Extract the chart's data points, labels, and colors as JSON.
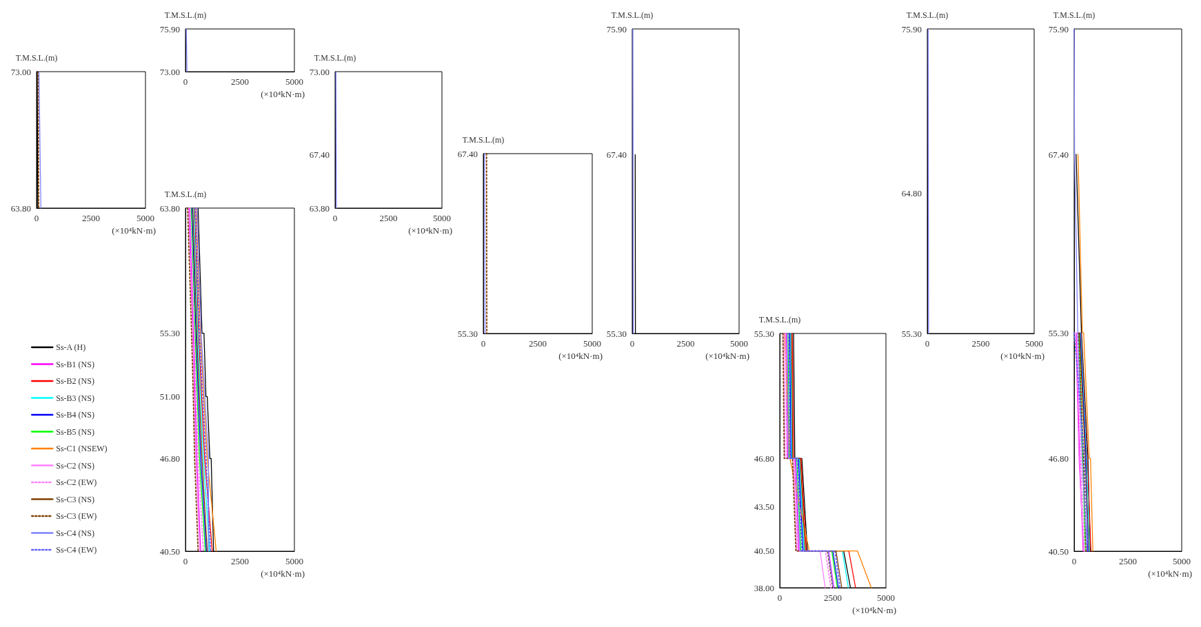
{
  "chart_data": [
    {
      "type": "line",
      "ylabel": "T.M.S.L.(m)",
      "xlabel": "(×10⁴kN·m)",
      "xlim": [
        0,
        5000
      ],
      "xticks": [
        0,
        2500,
        5000
      ],
      "ylim": [
        63.8,
        73
      ],
      "yticks": [
        {
          "value": 63.8,
          "label": "63.80"
        },
        {
          "value": 73,
          "label": "73.00"
        }
      ],
      "grid": false,
      "marker": "none",
      "series": [
        {
          "color": "#000000",
          "x": [
            30,
            60
          ],
          "values": [
            73,
            63.8
          ]
        },
        {
          "color": "#804000",
          "line_style": "dotted",
          "x": [
            70,
            100
          ],
          "values": [
            73,
            63.8
          ]
        },
        {
          "color": "#8080ff",
          "x": [
            110,
            200
          ],
          "values": [
            73,
            63.8
          ]
        }
      ]
    },
    {
      "type": "line",
      "ylabel": "T.M.S.L.(m)",
      "xlabel": "(×10⁴kN·m)",
      "xlim": [
        0,
        5000
      ],
      "xticks": [
        0,
        2500,
        5000
      ],
      "ylim": [
        73,
        75.9
      ],
      "yticks": [
        {
          "value": 73,
          "label": "73.00"
        },
        {
          "value": 75.9,
          "label": "75.90"
        }
      ],
      "grid": false,
      "marker": "none",
      "series": [
        {
          "color": "#8080ff",
          "x": [
            40,
            70
          ],
          "values": [
            75.9,
            73
          ]
        }
      ]
    },
    {
      "type": "line",
      "ylabel": "T.M.S.L.(m)",
      "xlabel": "(×10⁴kN·m)",
      "xlim": [
        0,
        5000
      ],
      "xticks": [
        0,
        2500,
        5000
      ],
      "ylim": [
        63.8,
        73
      ],
      "yticks": [
        {
          "value": 63.8,
          "label": "63.80"
        },
        {
          "value": 67.4,
          "label": "67.40"
        },
        {
          "value": 73,
          "label": "73.00"
        }
      ],
      "grid": false,
      "marker": "none",
      "series": [
        {
          "color": "#8080ff",
          "x": [
            40,
            60
          ],
          "values": [
            73,
            63.8
          ]
        }
      ]
    },
    {
      "type": "line",
      "ylabel": "T.M.S.L.(m)",
      "xlabel": "(×10⁴kN·m)",
      "xlim": [
        0,
        5000
      ],
      "xticks": [
        0,
        2500,
        5000
      ],
      "ylim": [
        40.5,
        63.8
      ],
      "yticks": [
        {
          "value": 40.5,
          "label": "40.50"
        },
        {
          "value": 46.8,
          "label": "46.80"
        },
        {
          "value": 51,
          "label": "51.00"
        },
        {
          "value": 55.3,
          "label": "55.30"
        },
        {
          "value": 63.8,
          "label": "63.80"
        }
      ],
      "grid": false,
      "marker": "none",
      "legend": "left",
      "series": [
        {
          "name": "Ss-A (H)",
          "color": "#000000",
          "x": [
            580,
            760,
            850,
            940,
            1000,
            1120,
            1180,
            1290
          ],
          "values": [
            63.8,
            55.3,
            55.3,
            51,
            51,
            46.8,
            46.8,
            40.5
          ]
        },
        {
          "name": "Ss-B1 (NS)",
          "color": "#ff00ff",
          "x": [
            180,
            360,
            440,
            520,
            700
          ],
          "values": [
            63.8,
            55.3,
            51,
            46.8,
            40.5
          ]
        },
        {
          "name": "Ss-B2 (NS)",
          "color": "#ff0000",
          "x": [
            420,
            600,
            740,
            880,
            1230
          ],
          "values": [
            63.8,
            55.3,
            51,
            46.8,
            40.5
          ]
        },
        {
          "name": "Ss-B3 (NS)",
          "color": "#00ffff",
          "x": [
            380,
            560,
            690,
            820,
            1110
          ],
          "values": [
            63.8,
            55.3,
            51,
            46.8,
            40.5
          ]
        },
        {
          "name": "Ss-B4 (NS)",
          "color": "#0000ff",
          "x": [
            300,
            480,
            590,
            700,
            960
          ],
          "values": [
            63.8,
            55.3,
            51,
            46.8,
            40.5
          ]
        },
        {
          "name": "Ss-B5 (NS)",
          "color": "#00ff00",
          "x": [
            260,
            440,
            540,
            640,
            910
          ],
          "values": [
            63.8,
            55.3,
            51,
            46.8,
            40.5
          ]
        },
        {
          "name": "Ss-C1 (NSEW)",
          "color": "#ff8000",
          "x": [
            500,
            680,
            840,
            1000,
            1410
          ],
          "values": [
            63.8,
            55.3,
            51,
            46.8,
            40.5
          ]
        },
        {
          "name": "Ss-C2 (NS)",
          "color": "#ff80ff",
          "x": [
            140,
            320,
            400,
            470,
            650
          ],
          "values": [
            63.8,
            55.3,
            51,
            46.8,
            40.5
          ]
        },
        {
          "name": "Ss-C2 (EW)",
          "color": "#ff80ff",
          "line_style": "dotted",
          "x": [
            220,
            400,
            490,
            580,
            820
          ],
          "values": [
            63.8,
            55.3,
            51,
            46.8,
            40.5
          ]
        },
        {
          "name": "Ss-C3 (NS)",
          "color": "#804000",
          "x": [
            340,
            520,
            640,
            760,
            1000
          ],
          "values": [
            63.8,
            55.3,
            51,
            46.8,
            40.5
          ]
        },
        {
          "name": "Ss-C3 (EW)",
          "color": "#804000",
          "line_style": "dotted",
          "x": [
            100,
            280,
            360,
            420,
            580
          ],
          "values": [
            63.8,
            55.3,
            51,
            46.8,
            40.5
          ]
        },
        {
          "name": "Ss-C4 (NS)",
          "color": "#8080ff",
          "x": [
            540,
            720,
            890,
            1060,
            1050
          ],
          "values": [
            63.8,
            55.3,
            51,
            46.8,
            40.5
          ]
        },
        {
          "name": "Ss-C4 (EW)",
          "color": "#6060ff",
          "line_style": "dotted",
          "x": [
            460,
            640,
            790,
            940,
            1150
          ],
          "values": [
            63.8,
            55.3,
            51,
            46.8,
            40.5
          ]
        }
      ]
    },
    {
      "type": "line",
      "ylabel": "T.M.S.L.(m)",
      "xlabel": "(×10⁴kN·m)",
      "xlim": [
        0,
        5000
      ],
      "xticks": [
        0,
        2500,
        5000
      ],
      "ylim": [
        55.3,
        67.4
      ],
      "yticks": [
        {
          "value": 55.3,
          "label": "55.30"
        },
        {
          "value": 67.4,
          "label": "67.40"
        }
      ],
      "grid": false,
      "marker": "none",
      "series": [
        {
          "color": "#804000",
          "line_style": "dotted",
          "x": [
            150,
            160
          ],
          "values": [
            67.4,
            55.3
          ]
        },
        {
          "color": "#8080ff",
          "x": [
            60,
            80
          ],
          "values": [
            67.4,
            55.3
          ]
        }
      ]
    },
    {
      "type": "line",
      "ylabel": "T.M.S.L.(m)",
      "xlabel": "(×10⁴kN·m)",
      "xlim": [
        0,
        5000
      ],
      "xticks": [
        0,
        2500,
        5000
      ],
      "ylim": [
        55.3,
        75.9
      ],
      "yticks": [
        {
          "value": 55.3,
          "label": "55.30"
        },
        {
          "value": 67.4,
          "label": "67.40"
        },
        {
          "value": 75.9,
          "label": "75.90"
        }
      ],
      "grid": false,
      "marker": "none",
      "series": [
        {
          "color": "#000000",
          "x": [
            140,
            150
          ],
          "values": [
            67.4,
            55.3
          ]
        },
        {
          "color": "#8080ff",
          "x": [
            30,
            50
          ],
          "values": [
            75.9,
            55.3
          ]
        }
      ]
    },
    {
      "type": "line",
      "ylabel": "T.M.S.L.(m)",
      "xlabel": "(×10⁴kN·m)",
      "xlim": [
        0,
        5000
      ],
      "xticks": [
        0,
        2500,
        5000
      ],
      "ylim": [
        38,
        55.3
      ],
      "yticks": [
        {
          "value": 38,
          "label": "38.00"
        },
        {
          "value": 40.5,
          "label": "40.50"
        },
        {
          "value": 43.5,
          "label": "43.50"
        },
        {
          "value": 46.8,
          "label": "46.80"
        },
        {
          "value": 55.3,
          "label": "55.30"
        }
      ],
      "grid": false,
      "marker": "none",
      "series": [
        {
          "color": "#000000",
          "x": [
            650,
            710,
            1040,
            1300,
            3010,
            3330
          ],
          "values": [
            55.3,
            46.8,
            46.8,
            40.5,
            40.5,
            38
          ]
        },
        {
          "color": "#ff00ff",
          "x": [
            310,
            370,
            720,
            900,
            2300,
            2550
          ],
          "values": [
            55.3,
            46.8,
            46.8,
            40.5,
            40.5,
            38
          ]
        },
        {
          "color": "#ff0000",
          "x": [
            590,
            650,
            1000,
            1250,
            3250,
            3570
          ],
          "values": [
            55.3,
            46.8,
            46.8,
            40.5,
            40.5,
            38
          ]
        },
        {
          "color": "#00ffff",
          "x": [
            510,
            570,
            920,
            1150,
            2950,
            3230
          ],
          "values": [
            55.3,
            46.8,
            46.8,
            40.5,
            40.5,
            38
          ]
        },
        {
          "color": "#0000ff",
          "x": [
            470,
            530,
            880,
            1100,
            2500,
            2760
          ],
          "values": [
            55.3,
            46.8,
            46.8,
            40.5,
            40.5,
            38
          ]
        },
        {
          "color": "#00ff00",
          "x": [
            390,
            450,
            800,
            1000,
            2450,
            2710
          ],
          "values": [
            55.3,
            46.8,
            46.8,
            40.5,
            40.5,
            38
          ]
        },
        {
          "color": "#ff8000",
          "x": [
            230,
            480,
            480,
            1390,
            3660,
            4310
          ],
          "values": [
            55.3,
            46.8,
            46.8,
            40.5,
            40.5,
            38
          ]
        },
        {
          "color": "#ff80ff",
          "x": [
            190,
            250,
            640,
            800,
            1900,
            2140
          ],
          "values": [
            55.3,
            46.8,
            46.8,
            40.5,
            40.5,
            38
          ]
        },
        {
          "color": "#ff80ff",
          "line_style": "dotted",
          "x": [
            270,
            330,
            680,
            850,
            2150,
            2410
          ],
          "values": [
            55.3,
            46.8,
            46.8,
            40.5,
            40.5,
            38
          ]
        },
        {
          "color": "#804000",
          "x": [
            550,
            610,
            960,
            1200,
            2650,
            2920
          ],
          "values": [
            55.3,
            46.8,
            46.8,
            40.5,
            40.5,
            38
          ]
        },
        {
          "color": "#804000",
          "line_style": "dotted",
          "x": [
            150,
            210,
            600,
            760,
            2250,
            2500
          ],
          "values": [
            55.3,
            46.8,
            46.8,
            40.5,
            40.5,
            38
          ]
        },
        {
          "color": "#8080ff",
          "x": [
            350,
            410,
            760,
            950,
            2280,
            2520
          ],
          "values": [
            55.3,
            46.8,
            46.8,
            40.5,
            40.5,
            38
          ]
        },
        {
          "color": "#6060ff",
          "line_style": "dotted",
          "x": [
            430,
            490,
            840,
            1050,
            2600,
            2840
          ],
          "values": [
            55.3,
            46.8,
            46.8,
            40.5,
            40.5,
            38
          ]
        }
      ]
    },
    {
      "type": "line",
      "ylabel": "T.M.S.L.(m)",
      "xlabel": "(×10⁴kN·m)",
      "xlim": [
        0,
        5000
      ],
      "xticks": [
        0,
        2500,
        5000
      ],
      "ylim": [
        55.3,
        75.9
      ],
      "yticks": [
        {
          "value": 55.3,
          "label": "55.30"
        },
        {
          "value": 64.8,
          "label": "64.80"
        },
        {
          "value": 75.9,
          "label": "75.90"
        }
      ],
      "grid": false,
      "marker": "none",
      "series": [
        {
          "color": "#8080ff",
          "x": [
            40,
            60
          ],
          "values": [
            75.9,
            55.3
          ]
        }
      ]
    },
    {
      "type": "line",
      "ylabel": "T.M.S.L.(m)",
      "xlabel": "(×10⁴kN·m)",
      "xlim": [
        0,
        5000
      ],
      "xticks": [
        0,
        2500,
        5000
      ],
      "ylim": [
        40.5,
        75.9
      ],
      "yticks": [
        {
          "value": 40.5,
          "label": "40.50"
        },
        {
          "value": 46.8,
          "label": "46.80"
        },
        {
          "value": 55.3,
          "label": "55.30"
        },
        {
          "value": 67.4,
          "label": "67.40"
        },
        {
          "value": 75.9,
          "label": "75.90"
        }
      ],
      "grid": false,
      "marker": "none",
      "series": [
        {
          "color": "#000000",
          "x": [
            90,
            340,
            640,
            750
          ],
          "values": [
            67.4,
            55.3,
            46.8,
            40.5
          ]
        },
        {
          "color": "#ff00ff",
          "x": [
            100,
            250,
            420
          ],
          "values": [
            55.3,
            46.8,
            40.5
          ]
        },
        {
          "color": "#ff0000",
          "x": [
            320,
            610,
            780
          ],
          "values": [
            55.3,
            46.8,
            40.5
          ]
        },
        {
          "color": "#00ffff",
          "x": [
            300,
            580,
            720
          ],
          "values": [
            55.3,
            46.8,
            40.5
          ]
        },
        {
          "color": "#0000ff",
          "x": [
            275,
            550,
            630
          ],
          "values": [
            55.3,
            46.8,
            40.5
          ]
        },
        {
          "color": "#00ff00",
          "x": [
            225,
            400,
            520
          ],
          "values": [
            55.3,
            46.8,
            40.5
          ]
        },
        {
          "color": "#ff8000",
          "x": [
            180,
            380,
            440,
            700,
            760,
            870
          ],
          "values": [
            67.4,
            55.3,
            55.3,
            46.8,
            46.8,
            40.5
          ]
        },
        {
          "color": "#ff80ff",
          "x": [
            70,
            220,
            450
          ],
          "values": [
            55.3,
            46.8,
            40.5
          ]
        },
        {
          "color": "#ff80ff",
          "line_style": "dotted",
          "x": [
            130,
            310,
            480
          ],
          "values": [
            55.3,
            46.8,
            40.5
          ]
        },
        {
          "color": "#804000",
          "x": [
            250,
            520,
            690
          ],
          "values": [
            55.3,
            46.8,
            40.5
          ]
        },
        {
          "color": "#804000",
          "line_style": "dotted",
          "x": [
            195,
            440,
            560
          ],
          "values": [
            55.3,
            46.8,
            40.5
          ]
        },
        {
          "color": "#8080ff",
          "x": [
            0,
            20,
            170,
            370,
            600
          ],
          "values": [
            75.9,
            67.4,
            55.3,
            46.8,
            40.5
          ]
        },
        {
          "color": "#6060ff",
          "line_style": "dotted",
          "x": [
            5,
            480,
            660
          ],
          "values": [
            55.3,
            46.8,
            40.5
          ]
        }
      ]
    }
  ]
}
